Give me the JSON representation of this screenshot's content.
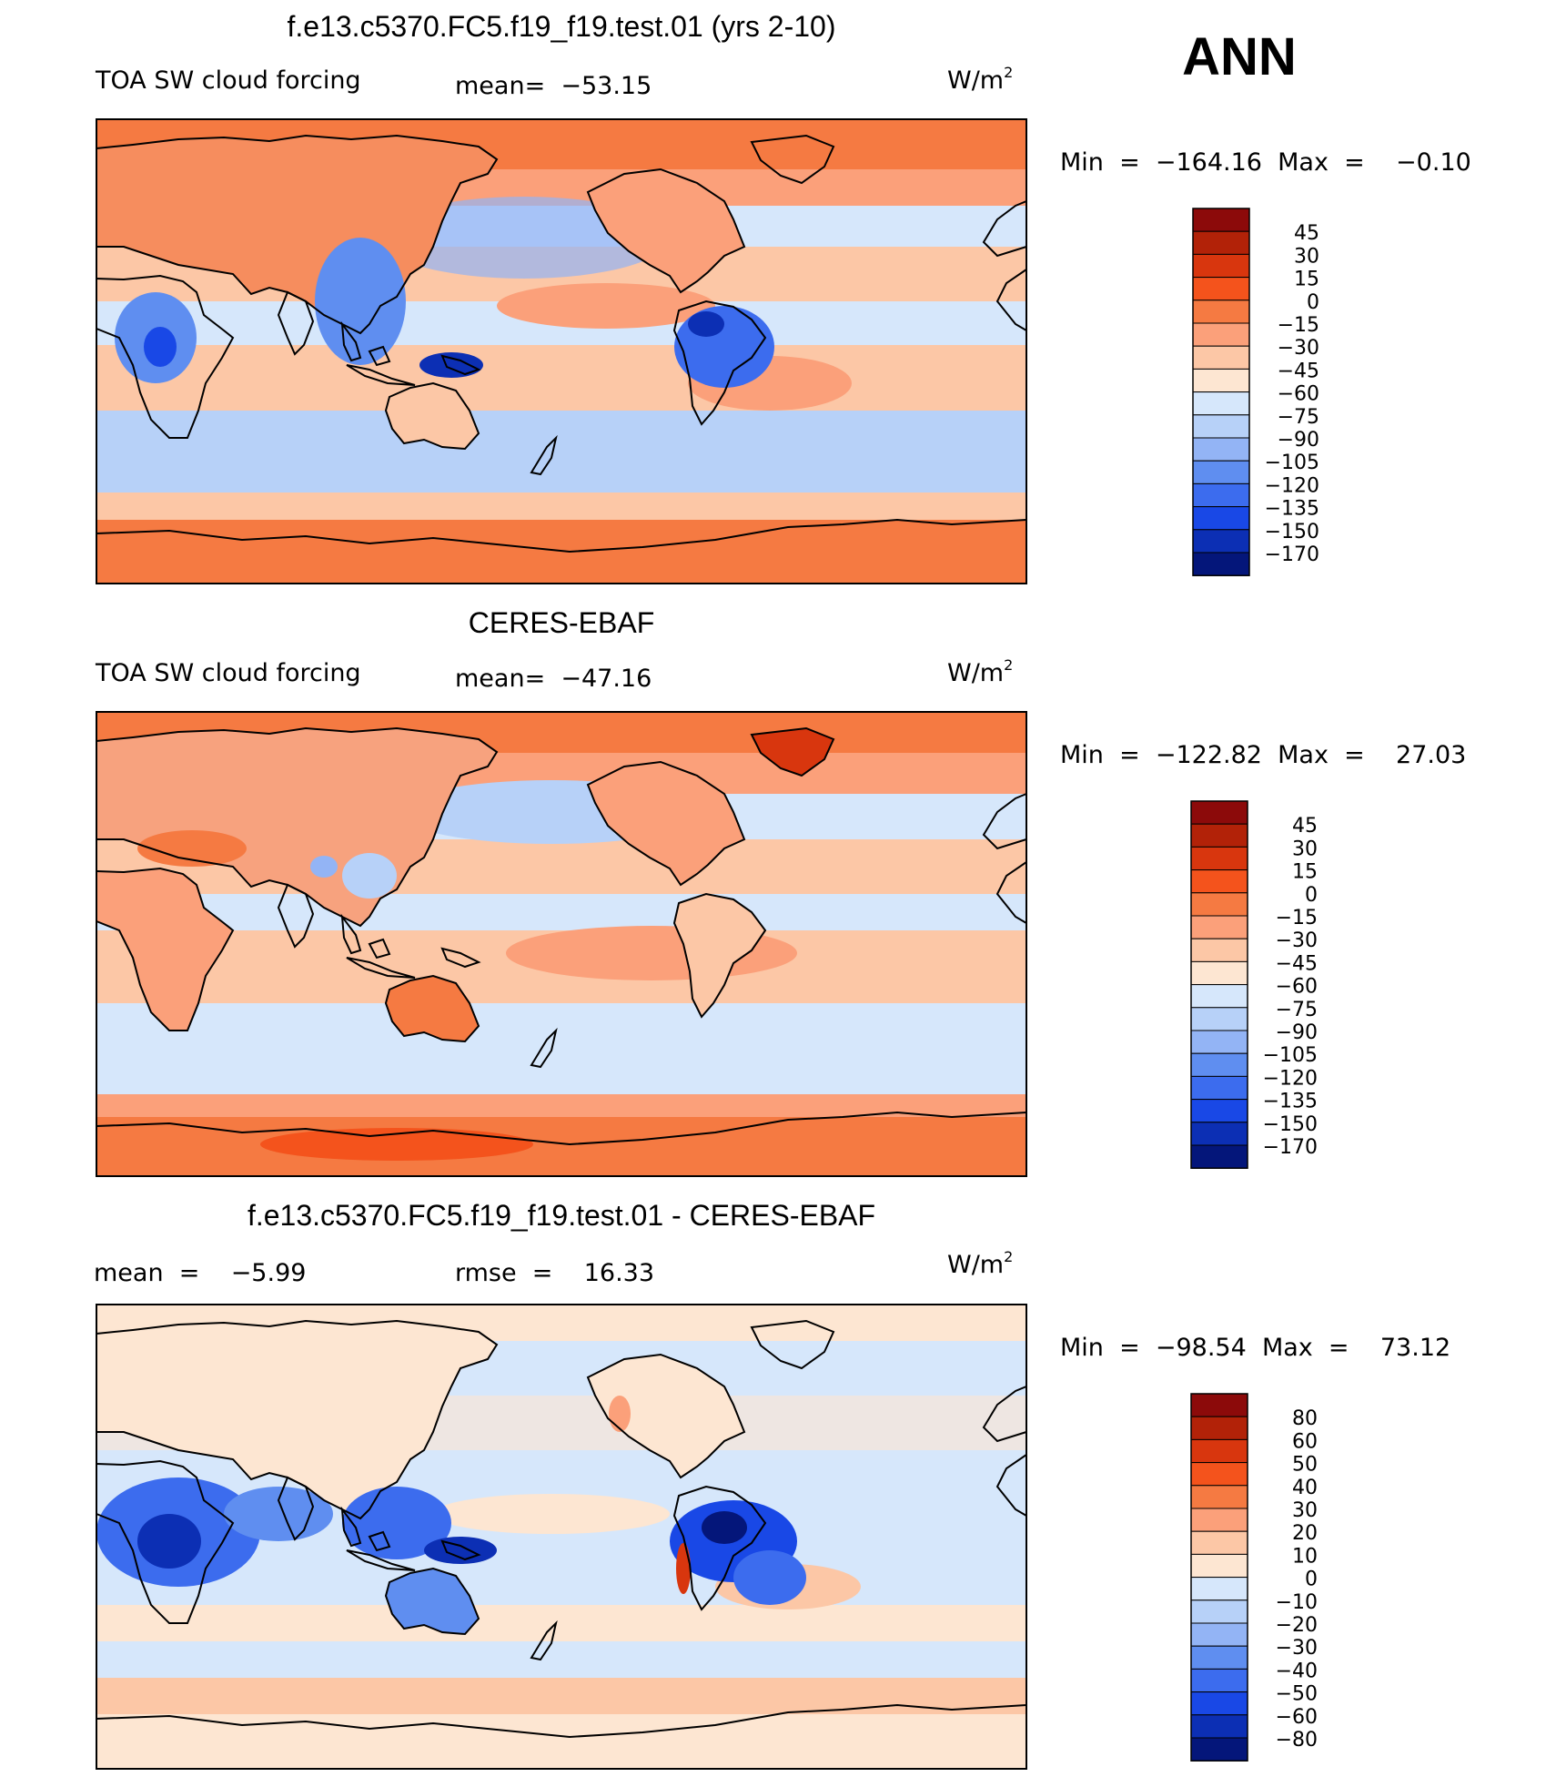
{
  "season": "ANN",
  "chart_data": [
    {
      "type": "heatmap",
      "title": "f.e13.c5370.FC5.f19_f19.test.01 (yrs 2-10)",
      "variable": "TOA SW cloud forcing",
      "stat_text": "mean=  −53.15",
      "units": "W/m",
      "units_exp": "2",
      "min_max_text": "Min  =  −164.16  Max  =    −0.10",
      "min": -164.16,
      "max": -0.1,
      "mean": -53.15,
      "colorbar": {
        "labels": [
          "45",
          "30",
          "15",
          "0",
          "−15",
          "−30",
          "−45",
          "−60",
          "−75",
          "−90",
          "−105",
          "−120",
          "−135",
          "−150",
          "−170"
        ],
        "colors": [
          "#8c0a0a",
          "#b22208",
          "#d8360e",
          "#f4531c",
          "#f57a42",
          "#fba07a",
          "#fcc7a6",
          "#fde6d2",
          "#d6e7fb",
          "#b7d1f8",
          "#93b4f5",
          "#5f8ef0",
          "#3c6cee",
          "#1948e6",
          "#0c2fb4",
          "#04167a"
        ]
      },
      "regions": {
        "land": "#f68d5e",
        "wet_land": "#4f78e0",
        "dark_spot": "#0c2fb4"
      }
    },
    {
      "type": "heatmap",
      "title": "CERES-EBAF",
      "variable": "TOA SW cloud forcing",
      "stat_text": "mean=  −47.16",
      "units": "W/m",
      "units_exp": "2",
      "min_max_text": "Min  =  −122.82  Max  =    27.03",
      "min": -122.82,
      "max": 27.03,
      "mean": -47.16,
      "colorbar": {
        "labels": [
          "45",
          "30",
          "15",
          "0",
          "−15",
          "−30",
          "−45",
          "−60",
          "−75",
          "−90",
          "−105",
          "−120",
          "−135",
          "−150",
          "−170"
        ],
        "colors": [
          "#8c0a0a",
          "#b22208",
          "#d8360e",
          "#f4531c",
          "#f57a42",
          "#fba07a",
          "#fcc7a6",
          "#fde6d2",
          "#d6e7fb",
          "#b7d1f8",
          "#93b4f5",
          "#5f8ef0",
          "#3c6cee",
          "#1948e6",
          "#0c2fb4",
          "#04167a"
        ]
      },
      "regions": {
        "land": "#f7a27e",
        "wet_land": "#b7d1f8",
        "dark_spot": "#93b4f5"
      }
    },
    {
      "type": "heatmap",
      "title": "f.e13.c5370.FC5.f19_f19.test.01 - CERES-EBAF",
      "variable": "",
      "stat_text": "mean  =    −5.99",
      "rmse_text": "rmse  =    16.33",
      "units": "W/m",
      "units_exp": "2",
      "min_max_text": "Min  =  −98.54  Max  =    73.12",
      "min": -98.54,
      "max": 73.12,
      "mean": -5.99,
      "rmse": 16.33,
      "colorbar": {
        "labels": [
          "80",
          "60",
          "50",
          "40",
          "30",
          "20",
          "10",
          "0",
          "−10",
          "−20",
          "−30",
          "−40",
          "−50",
          "−60",
          "−80"
        ],
        "colors": [
          "#8c0a0a",
          "#b22208",
          "#d8360e",
          "#f4531c",
          "#f57a42",
          "#fba07a",
          "#fcc7a6",
          "#fde6d2",
          "#d6e7fb",
          "#b7d1f8",
          "#93b4f5",
          "#5f8ef0",
          "#3c6cee",
          "#1948e6",
          "#0c2fb4",
          "#04167a"
        ]
      },
      "regions": {
        "land": "#d6e7fb",
        "wet_land": "#3c6cee",
        "dark_spot": "#0c2fb4"
      }
    }
  ]
}
